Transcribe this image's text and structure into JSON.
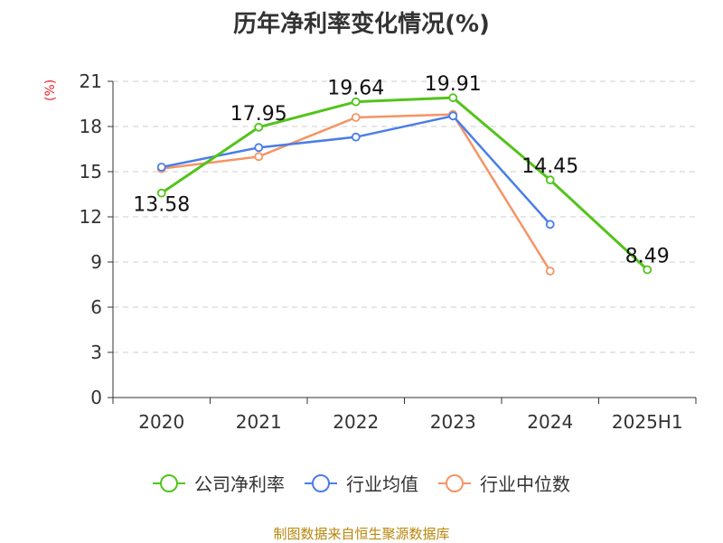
{
  "chart_data": {
    "type": "line",
    "title": "历年净利率变化情况(%)",
    "unit_label": "(%)",
    "categories": [
      "2020",
      "2021",
      "2022",
      "2023",
      "2024",
      "2025H1"
    ],
    "ylim": [
      0,
      21
    ],
    "yticks": [
      "0",
      "3",
      "6",
      "9",
      "12",
      "15",
      "18",
      "21"
    ],
    "grid": true,
    "legend_position": "bottom",
    "series": [
      {
        "name": "公司净利率",
        "color": "#52c41a",
        "values": [
          13.58,
          17.95,
          19.64,
          19.91,
          14.45,
          8.49
        ],
        "labels": [
          "13.58",
          "17.95",
          "19.64",
          "19.91",
          "14.45",
          "8.49"
        ]
      },
      {
        "name": "行业均值",
        "color": "#4a7de8",
        "values": [
          15.3,
          16.6,
          17.3,
          18.7,
          11.5,
          null
        ]
      },
      {
        "name": "行业中位数",
        "color": "#f59464",
        "values": [
          15.2,
          16.0,
          18.6,
          18.8,
          8.4,
          null
        ]
      }
    ]
  },
  "source": "制图数据来自恒生聚源数据库"
}
